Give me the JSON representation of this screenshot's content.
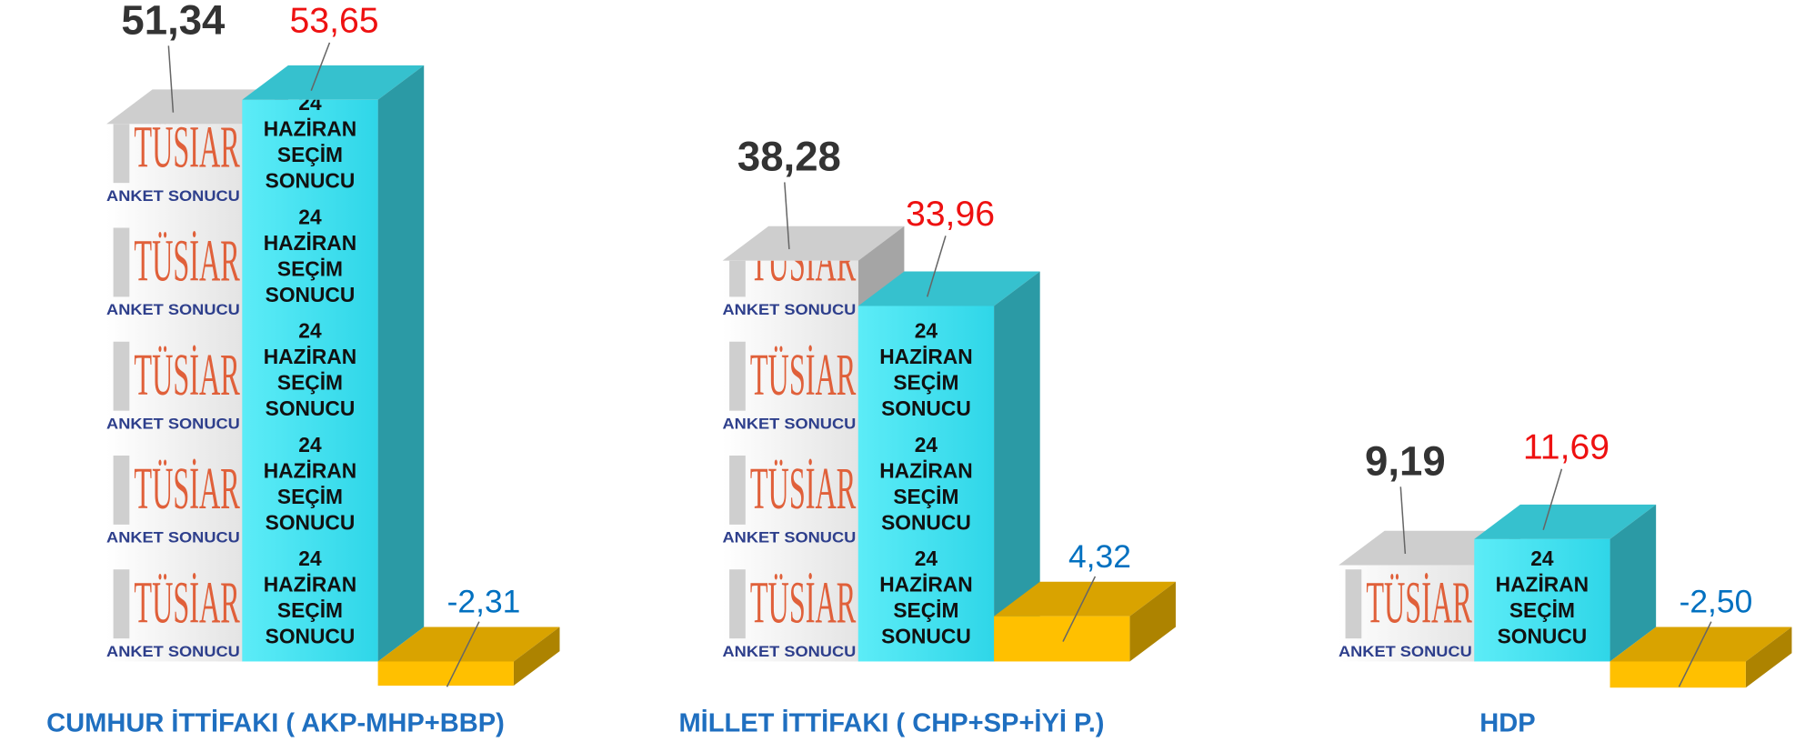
{
  "chart_data": {
    "type": "bar3d",
    "categories": [
      "CUMHUR İTTİFAKI ( AKP-MHP+BBP)",
      "MİLLET İTTİFAKI ( CHP+SP+İYİ P.)",
      "HDP"
    ],
    "series": [
      {
        "color": "#f2f2f2",
        "label_color": "#333333",
        "values": [
          51.34,
          38.28,
          9.19
        ],
        "value_labels": [
          "51,34",
          "38,28",
          "9,19"
        ]
      },
      {
        "color": "#3fe3f2",
        "label_color": "#ee1111",
        "values": [
          53.65,
          33.96,
          11.69
        ],
        "value_labels": [
          "53,65",
          "33,96",
          "11,69"
        ]
      },
      {
        "color": "#ffc000",
        "label_color": "#0070c0",
        "values": [
          -2.31,
          4.32,
          -2.5
        ],
        "value_labels": [
          "-2,31",
          "4,32",
          "-2,50"
        ]
      }
    ],
    "bar_texts": {
      "brand": "TÜSİAR",
      "survey": "ANKET SONUCU",
      "result": [
        "24",
        "HAZİRAN",
        "SEÇİM",
        "SONUCU"
      ]
    },
    "category_color": "#1f6fc0"
  }
}
